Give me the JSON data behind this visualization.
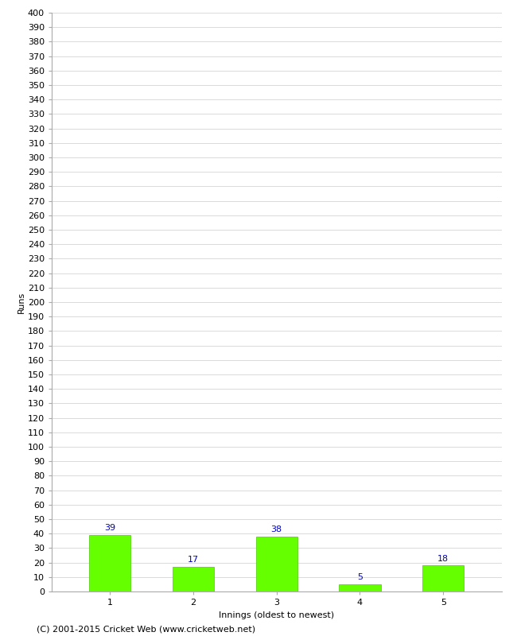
{
  "categories": [
    "1",
    "2",
    "3",
    "4",
    "5"
  ],
  "values": [
    39,
    17,
    38,
    5,
    18
  ],
  "bar_color": "#66ff00",
  "bar_edgecolor": "#44cc00",
  "xlabel": "Innings (oldest to newest)",
  "ylabel": "Runs",
  "ylim": [
    0,
    400
  ],
  "ytick_step": 10,
  "annotation_color": "#0000cc",
  "annotation_fontsize": 8,
  "footer": "(C) 2001-2015 Cricket Web (www.cricketweb.net)",
  "footer_fontsize": 8,
  "background_color": "#ffffff",
  "grid_color": "#cccccc",
  "tick_label_fontsize": 8,
  "axis_label_fontsize": 8
}
